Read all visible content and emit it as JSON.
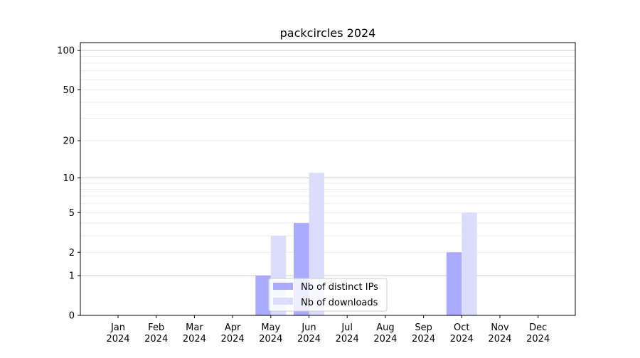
{
  "chart_data": {
    "type": "bar",
    "title": "packcircles 2024",
    "xlabel": "",
    "ylabel": "",
    "yscale": "symlog (log of 1+y)",
    "ylim": [
      0,
      115
    ],
    "yticks": [
      0,
      1,
      2,
      5,
      10,
      20,
      50,
      100
    ],
    "ytick_labels": [
      "0",
      "1",
      "2",
      "5",
      "10",
      "20",
      "50",
      "100"
    ],
    "grid": true,
    "legend_position": "lower-center",
    "categories": [
      "Jan\n2024",
      "Feb\n2024",
      "Mar\n2024",
      "Apr\n2024",
      "May\n2024",
      "Jun\n2024",
      "Jul\n2024",
      "Aug\n2024",
      "Sep\n2024",
      "Oct\n2024",
      "Nov\n2024",
      "Dec\n2024"
    ],
    "series": [
      {
        "name": "Nb of distinct IPs",
        "color": "#aaaaff",
        "values": [
          0,
          0,
          0,
          0,
          1,
          4,
          0,
          0,
          0,
          2,
          0,
          0
        ]
      },
      {
        "name": "Nb of downloads",
        "color": "#dcdcfc",
        "values": [
          0,
          0,
          0,
          0,
          3,
          11,
          0,
          0,
          0,
          5,
          0,
          0
        ]
      }
    ]
  }
}
